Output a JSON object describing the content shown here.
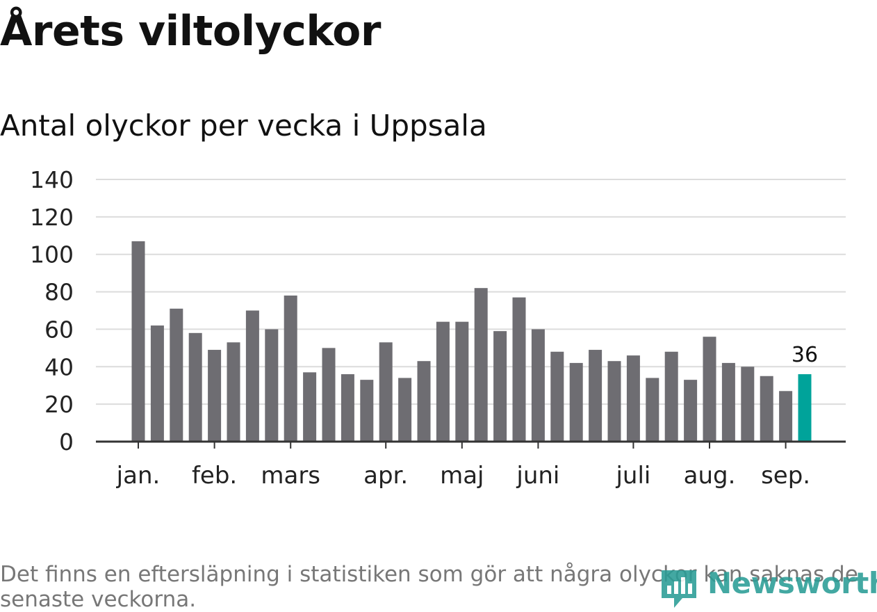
{
  "chart_data": {
    "type": "bar",
    "title": "Årets viltolyckor",
    "subtitle": "Antal olyckor per vecka i Uppsala",
    "xlabel": "",
    "ylabel": "",
    "ylim": [
      0,
      140
    ],
    "yticks": [
      "0",
      "20",
      "40",
      "60",
      "80",
      "100",
      "120",
      "140"
    ],
    "grid": true,
    "months": [
      {
        "label": "jan.",
        "week": 1
      },
      {
        "label": "feb.",
        "week": 5
      },
      {
        "label": "mars",
        "week": 9
      },
      {
        "label": "apr.",
        "week": 14
      },
      {
        "label": "maj",
        "week": 18
      },
      {
        "label": "juni",
        "week": 22
      },
      {
        "label": "juli",
        "week": 27
      },
      {
        "label": "aug.",
        "week": 31
      },
      {
        "label": "sep.",
        "week": 35
      }
    ],
    "weeks": [
      1,
      2,
      3,
      4,
      5,
      6,
      7,
      8,
      9,
      10,
      11,
      12,
      13,
      14,
      15,
      16,
      17,
      18,
      19,
      20,
      21,
      22,
      23,
      24,
      25,
      26,
      27,
      28,
      29,
      30,
      31,
      32,
      33,
      34,
      35,
      36
    ],
    "values": [
      107,
      62,
      71,
      58,
      49,
      53,
      70,
      60,
      78,
      37,
      50,
      36,
      33,
      53,
      34,
      43,
      64,
      64,
      82,
      59,
      77,
      60,
      48,
      42,
      49,
      43,
      46,
      34,
      48,
      33,
      56,
      42,
      40,
      35,
      27,
      36
    ],
    "highlight_index": 35,
    "highlight_label": "36",
    "colors": {
      "bar": "#6e6d72",
      "highlight": "#00a39a",
      "grid": "#dcdcdc",
      "axis": "#333333"
    }
  },
  "footer": {
    "note": "Det finns en eftersläpning i statistiken som gör att några olyckor kan saknas de senaste veckorna.",
    "logo_text": "Newsworthy"
  }
}
